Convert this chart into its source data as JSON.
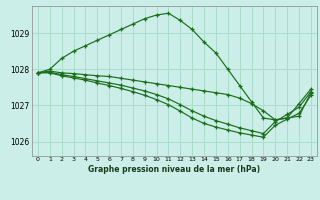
{
  "title": "Graphe pression niveau de la mer (hPa)",
  "bg_color": "#cceee8",
  "grid_color": "#aaddcc",
  "line_color": "#1a6e1a",
  "xlim": [
    -0.5,
    23.5
  ],
  "ylim": [
    1025.6,
    1029.75
  ],
  "yticks": [
    1026,
    1027,
    1028,
    1029
  ],
  "xticks": [
    0,
    1,
    2,
    3,
    4,
    5,
    6,
    7,
    8,
    9,
    10,
    11,
    12,
    13,
    14,
    15,
    16,
    17,
    18,
    19,
    20,
    21,
    22,
    23
  ],
  "series": [
    {
      "x": [
        0,
        1,
        2,
        3,
        4,
        5,
        6,
        7,
        8,
        9,
        10,
        11,
        12,
        13,
        14,
        15,
        16,
        17,
        18,
        19,
        20,
        21,
        22,
        23
      ],
      "y": [
        1027.9,
        1028.0,
        1028.3,
        1028.5,
        1028.65,
        1028.8,
        1028.95,
        1029.1,
        1029.25,
        1029.4,
        1029.5,
        1029.55,
        1029.35,
        1029.1,
        1028.75,
        1028.45,
        1028.0,
        1027.55,
        1027.1,
        1026.65,
        1026.6,
        1026.65,
        1027.05,
        1027.45
      ]
    },
    {
      "x": [
        0,
        1,
        2,
        3,
        4,
        5,
        6,
        7,
        8,
        9,
        10,
        11,
        12,
        13,
        14,
        15,
        16,
        17,
        18,
        19,
        20,
        21,
        22,
        23
      ],
      "y": [
        1027.9,
        1027.95,
        1027.9,
        1027.88,
        1027.85,
        1027.82,
        1027.8,
        1027.75,
        1027.7,
        1027.65,
        1027.6,
        1027.55,
        1027.5,
        1027.45,
        1027.4,
        1027.35,
        1027.3,
        1027.2,
        1027.05,
        1026.85,
        1026.6,
        1026.65,
        1026.7,
        1027.35
      ]
    },
    {
      "x": [
        0,
        1,
        2,
        3,
        4,
        5,
        6,
        7,
        8,
        9,
        10,
        11,
        12,
        13,
        14,
        15,
        16,
        17,
        18,
        19,
        20,
        21,
        22,
        23
      ],
      "y": [
        1027.9,
        1027.92,
        1027.85,
        1027.8,
        1027.74,
        1027.68,
        1027.62,
        1027.56,
        1027.48,
        1027.4,
        1027.3,
        1027.18,
        1027.02,
        1026.85,
        1026.7,
        1026.58,
        1026.48,
        1026.38,
        1026.3,
        1026.22,
        1026.55,
        1026.75,
        1026.95,
        1027.38
      ]
    },
    {
      "x": [
        0,
        1,
        2,
        3,
        4,
        5,
        6,
        7,
        8,
        9,
        10,
        11,
        12,
        13,
        14,
        15,
        16,
        17,
        18,
        19,
        20,
        21,
        22,
        23
      ],
      "y": [
        1027.9,
        1027.9,
        1027.82,
        1027.76,
        1027.7,
        1027.62,
        1027.55,
        1027.47,
        1027.38,
        1027.28,
        1027.16,
        1027.02,
        1026.84,
        1026.65,
        1026.5,
        1026.4,
        1026.32,
        1026.24,
        1026.18,
        1026.12,
        1026.45,
        1026.62,
        1026.78,
        1027.28
      ]
    }
  ]
}
